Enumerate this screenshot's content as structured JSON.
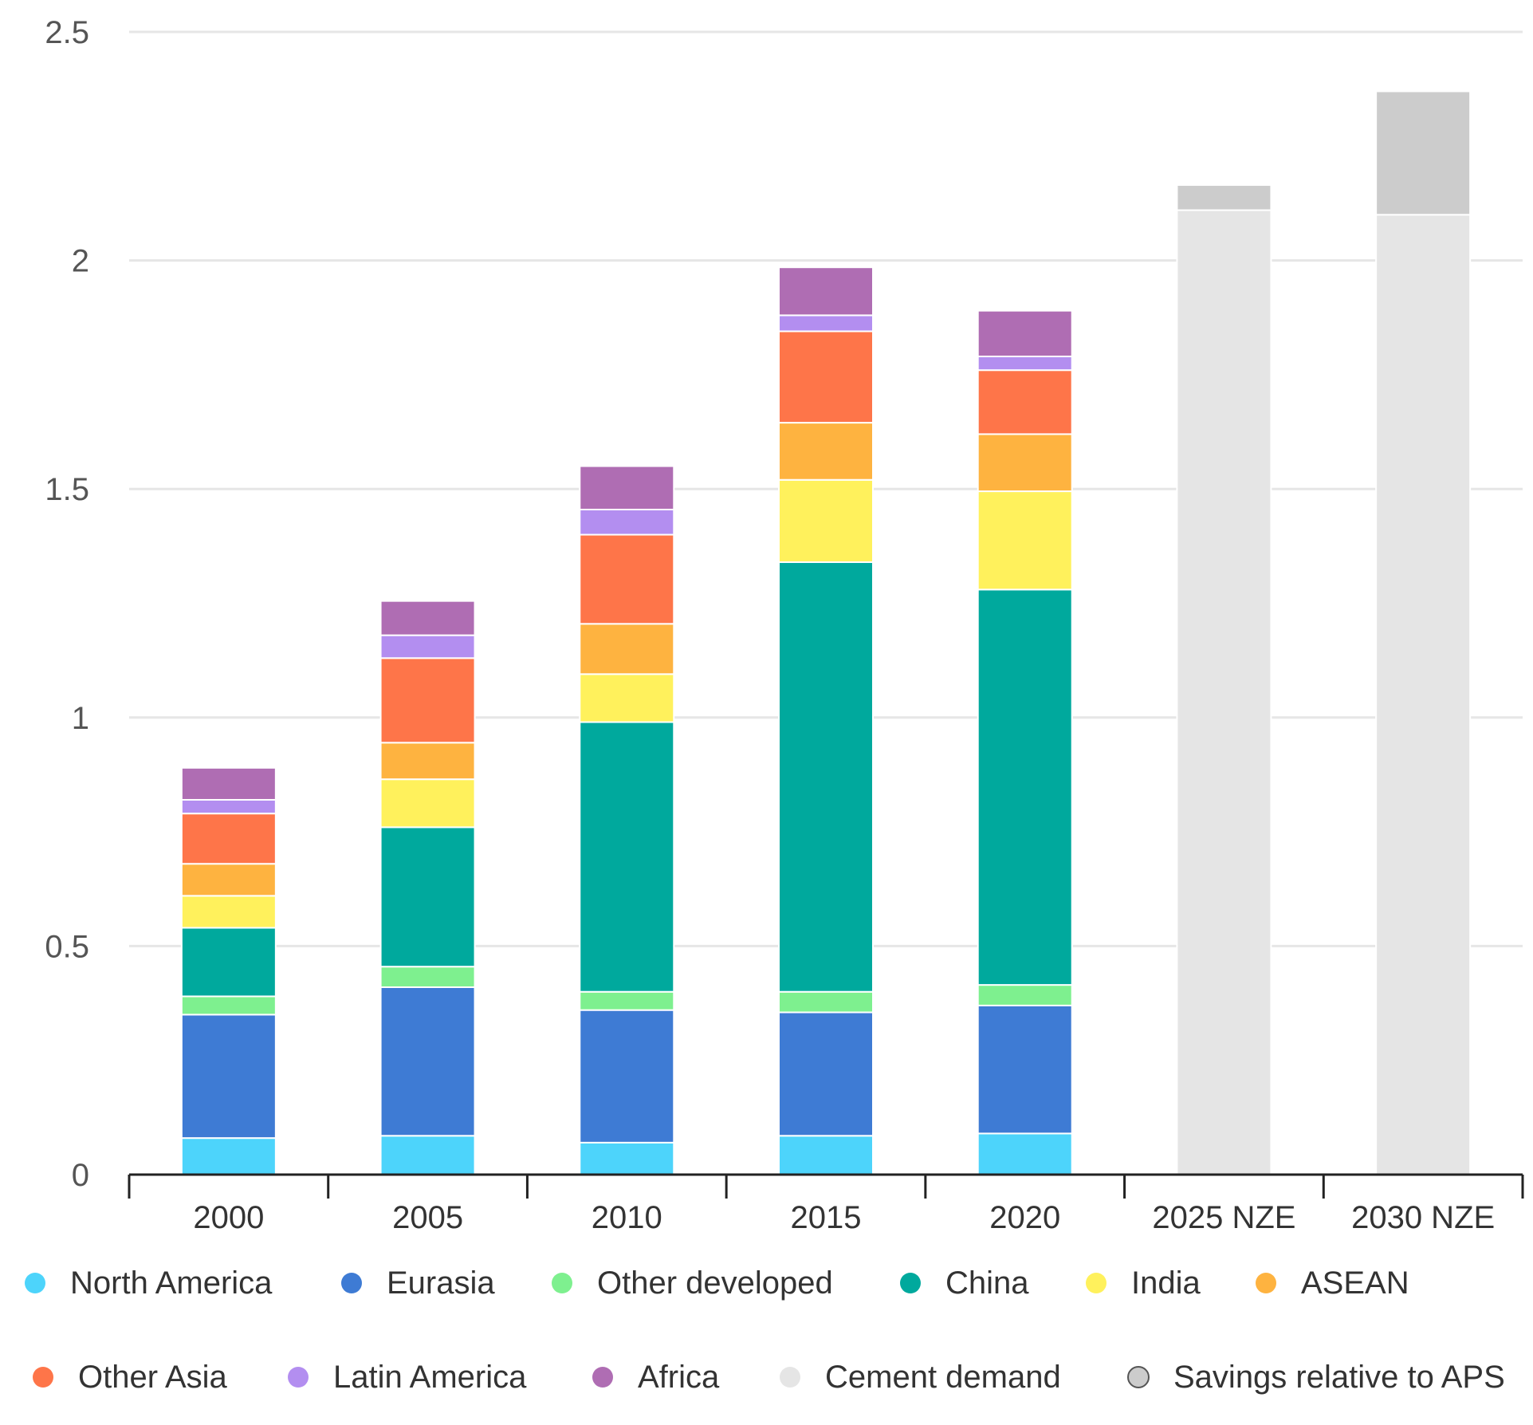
{
  "chart_data": {
    "type": "bar",
    "stacked": true,
    "title": "",
    "xlabel": "",
    "ylabel": "",
    "ylim": [
      0,
      2.5
    ],
    "yticks": [
      0,
      0.5,
      1,
      1.5,
      2,
      2.5
    ],
    "ytick_labels": [
      "0",
      "0.5",
      "1",
      "1.5",
      "2",
      "2.5"
    ],
    "grid": true,
    "legend_position": "bottom",
    "categories": [
      "2000",
      "2005",
      "2010",
      "2015",
      "2020",
      "2025 NZE",
      "2030 NZE"
    ],
    "series": [
      {
        "name": "North America",
        "color": "#4dd4fb",
        "values": [
          0.08,
          0.085,
          0.07,
          0.085,
          0.09,
          0,
          0
        ]
      },
      {
        "name": "Eurasia",
        "color": "#3e7bd4",
        "values": [
          0.27,
          0.325,
          0.29,
          0.27,
          0.28,
          0,
          0
        ]
      },
      {
        "name": "Other developed",
        "color": "#7ef08f",
        "values": [
          0.04,
          0.045,
          0.04,
          0.045,
          0.045,
          0,
          0
        ]
      },
      {
        "name": "China",
        "color": "#00a99d",
        "values": [
          0.15,
          0.305,
          0.59,
          0.94,
          0.865,
          0,
          0
        ]
      },
      {
        "name": "India",
        "color": "#fff15c",
        "values": [
          0.07,
          0.105,
          0.105,
          0.18,
          0.215,
          0,
          0
        ]
      },
      {
        "name": "ASEAN",
        "color": "#feb340",
        "values": [
          0.07,
          0.08,
          0.11,
          0.125,
          0.125,
          0,
          0
        ]
      },
      {
        "name": "Other Asia",
        "color": "#fe7549",
        "values": [
          0.11,
          0.185,
          0.195,
          0.2,
          0.14,
          0,
          0
        ]
      },
      {
        "name": "Latin America",
        "color": "#b38ef0",
        "values": [
          0.03,
          0.05,
          0.055,
          0.035,
          0.03,
          0,
          0
        ]
      },
      {
        "name": "Africa",
        "color": "#af6db3",
        "values": [
          0.07,
          0.075,
          0.095,
          0.105,
          0.1,
          0,
          0
        ]
      },
      {
        "name": "Cement demand",
        "color": "#e5e5e5",
        "values": [
          0,
          0,
          0,
          0,
          0,
          2.11,
          2.1
        ]
      },
      {
        "name": "Savings relative to APS",
        "color": "#cccccc",
        "values": [
          0,
          0,
          0,
          0,
          0,
          0.055,
          0.27
        ]
      }
    ]
  }
}
